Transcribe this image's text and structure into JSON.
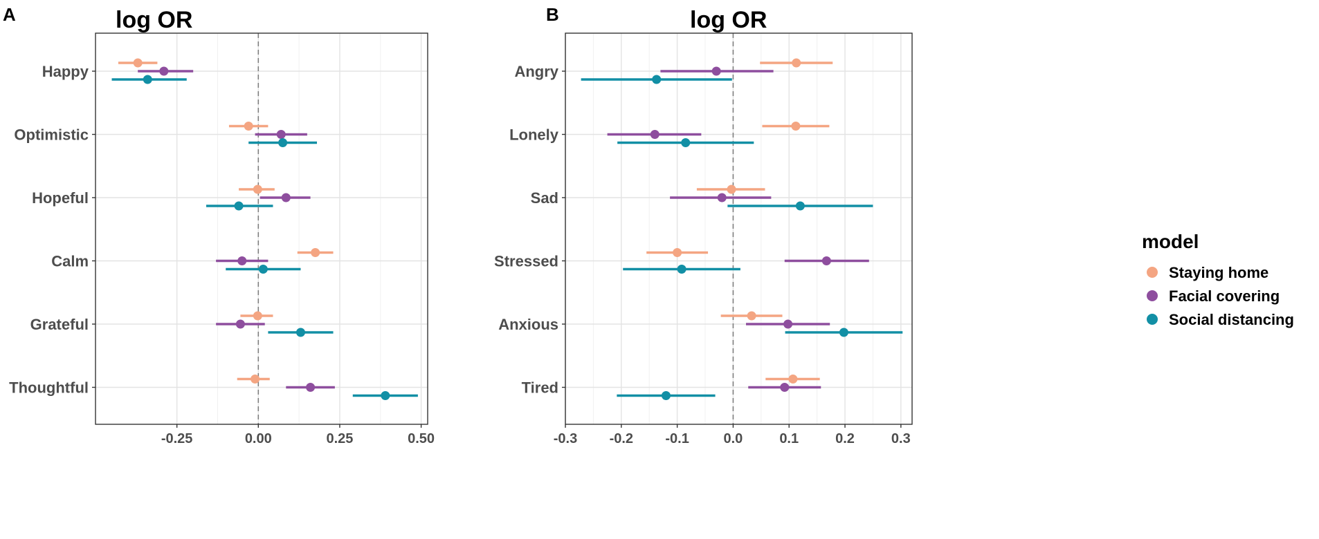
{
  "chart_data": [
    {
      "type": "forest",
      "panel": "A",
      "title": "log OR",
      "xlim": [
        -0.5,
        0.52
      ],
      "xticks": [
        -0.25,
        0.0,
        0.25,
        0.5
      ],
      "xtick_labels": [
        "-0.25",
        "0.00",
        "0.25",
        "0.50"
      ],
      "categories": [
        "Happy",
        "Optimistic",
        "Hopeful",
        "Calm",
        "Grateful",
        "Thoughtful"
      ],
      "series": [
        {
          "name": "Staying home",
          "estimate": [
            -0.37,
            -0.03,
            -0.002,
            0.175,
            -0.002,
            -0.01
          ],
          "lower": [
            -0.43,
            -0.09,
            -0.06,
            0.12,
            -0.055,
            -0.065
          ],
          "upper": [
            -0.31,
            0.03,
            0.05,
            0.23,
            0.045,
            0.035
          ]
        },
        {
          "name": "Facial covering",
          "estimate": [
            -0.29,
            0.07,
            0.085,
            -0.05,
            -0.055,
            0.16
          ],
          "lower": [
            -0.37,
            -0.01,
            0.005,
            -0.13,
            -0.13,
            0.085
          ],
          "upper": [
            -0.2,
            0.15,
            0.16,
            0.03,
            0.02,
            0.235
          ]
        },
        {
          "name": "Social distancing",
          "estimate": [
            -0.34,
            0.075,
            -0.06,
            0.015,
            0.13,
            0.39
          ],
          "lower": [
            -0.45,
            -0.03,
            -0.16,
            -0.1,
            0.03,
            0.29
          ],
          "upper": [
            -0.22,
            0.18,
            0.045,
            0.13,
            0.23,
            0.49
          ]
        }
      ]
    },
    {
      "type": "forest",
      "panel": "B",
      "title": "log OR",
      "xlim": [
        -0.3,
        0.32
      ],
      "xticks": [
        -0.3,
        -0.2,
        -0.1,
        0.0,
        0.1,
        0.2,
        0.3
      ],
      "xtick_labels": [
        "-0.3",
        "-0.2",
        "-0.1",
        "0.0",
        "0.1",
        "0.2",
        "0.3"
      ],
      "categories": [
        "Angry",
        "Lonely",
        "Sad",
        "Stressed",
        "Anxious",
        "Tired"
      ],
      "series": [
        {
          "name": "Staying home",
          "estimate": [
            0.113,
            0.112,
            -0.003,
            -0.1,
            0.033,
            0.107
          ],
          "lower": [
            0.048,
            0.052,
            -0.065,
            -0.155,
            -0.022,
            0.058
          ],
          "upper": [
            0.178,
            0.172,
            0.057,
            -0.045,
            0.088,
            0.155
          ]
        },
        {
          "name": "Facial covering",
          "estimate": [
            -0.03,
            -0.14,
            -0.02,
            0.167,
            0.098,
            0.092
          ],
          "lower": [
            -0.13,
            -0.225,
            -0.113,
            0.092,
            0.023,
            0.027
          ],
          "upper": [
            0.072,
            -0.057,
            0.068,
            0.243,
            0.173,
            0.157
          ]
        },
        {
          "name": "Social distancing",
          "estimate": [
            -0.137,
            -0.085,
            0.12,
            -0.092,
            0.198,
            -0.12
          ],
          "lower": [
            -0.272,
            -0.207,
            -0.01,
            -0.197,
            0.093,
            -0.208
          ],
          "upper": [
            -0.002,
            0.037,
            0.25,
            0.013,
            0.303,
            -0.032
          ]
        }
      ]
    }
  ],
  "legend": {
    "title": "model",
    "items": [
      {
        "label": "Staying home",
        "color": "#F4A582"
      },
      {
        "label": "Facial covering",
        "color": "#8E4E9E"
      },
      {
        "label": "Social distancing",
        "color": "#128FA5"
      }
    ]
  }
}
